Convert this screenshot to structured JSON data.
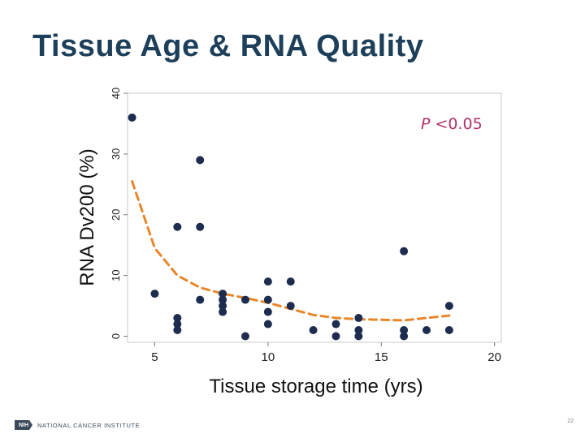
{
  "slide": {
    "title": "Tissue Age & RNA Quality",
    "page_number": "22"
  },
  "footer": {
    "logo_badge": "NIH",
    "org_name": "NATIONAL CANCER INSTITUTE"
  },
  "colors": {
    "title": "#1d3f5a",
    "points": "#1e2d4f",
    "trend": "#e8862a",
    "annotation": "#b0306b"
  },
  "chart_data": {
    "type": "scatter",
    "title": "",
    "xlabel": "Tissue storage time (yrs)",
    "ylabel": "RNA Dv200 (%)",
    "xlim": [
      3.8,
      20.3
    ],
    "ylim": [
      -1,
      40
    ],
    "xticks": [
      5,
      10,
      15,
      20
    ],
    "yticks": [
      0,
      10,
      20,
      30,
      40
    ],
    "annotation": {
      "italic": "P",
      "text": " <0.05"
    },
    "series": [
      {
        "name": "samples",
        "kind": "scatter",
        "points": [
          [
            4,
            36
          ],
          [
            5,
            7
          ],
          [
            6,
            18
          ],
          [
            6,
            3
          ],
          [
            6,
            2
          ],
          [
            6,
            1
          ],
          [
            7,
            29
          ],
          [
            7,
            18
          ],
          [
            7,
            6
          ],
          [
            8,
            7
          ],
          [
            8,
            6
          ],
          [
            8,
            5
          ],
          [
            8,
            4
          ],
          [
            9,
            6
          ],
          [
            9,
            0
          ],
          [
            10,
            9
          ],
          [
            10,
            6
          ],
          [
            10,
            4
          ],
          [
            10,
            2
          ],
          [
            11,
            9
          ],
          [
            11,
            5
          ],
          [
            12,
            1
          ],
          [
            13,
            2
          ],
          [
            13,
            0
          ],
          [
            14,
            3
          ],
          [
            14,
            1
          ],
          [
            14,
            0
          ],
          [
            16,
            14
          ],
          [
            16,
            1
          ],
          [
            16,
            0
          ],
          [
            17,
            1
          ],
          [
            18,
            5
          ],
          [
            18,
            1
          ]
        ]
      },
      {
        "name": "trend",
        "kind": "line",
        "points": [
          [
            4,
            25.5
          ],
          [
            5,
            14.5
          ],
          [
            6,
            10
          ],
          [
            7,
            8
          ],
          [
            8,
            7
          ],
          [
            9,
            6.3
          ],
          [
            10,
            5.5
          ],
          [
            11,
            4.5
          ],
          [
            12,
            3.5
          ],
          [
            13,
            3.0
          ],
          [
            14,
            2.8
          ],
          [
            15,
            2.7
          ],
          [
            16,
            2.6
          ],
          [
            17,
            3.0
          ],
          [
            18,
            3.4
          ]
        ]
      }
    ]
  }
}
